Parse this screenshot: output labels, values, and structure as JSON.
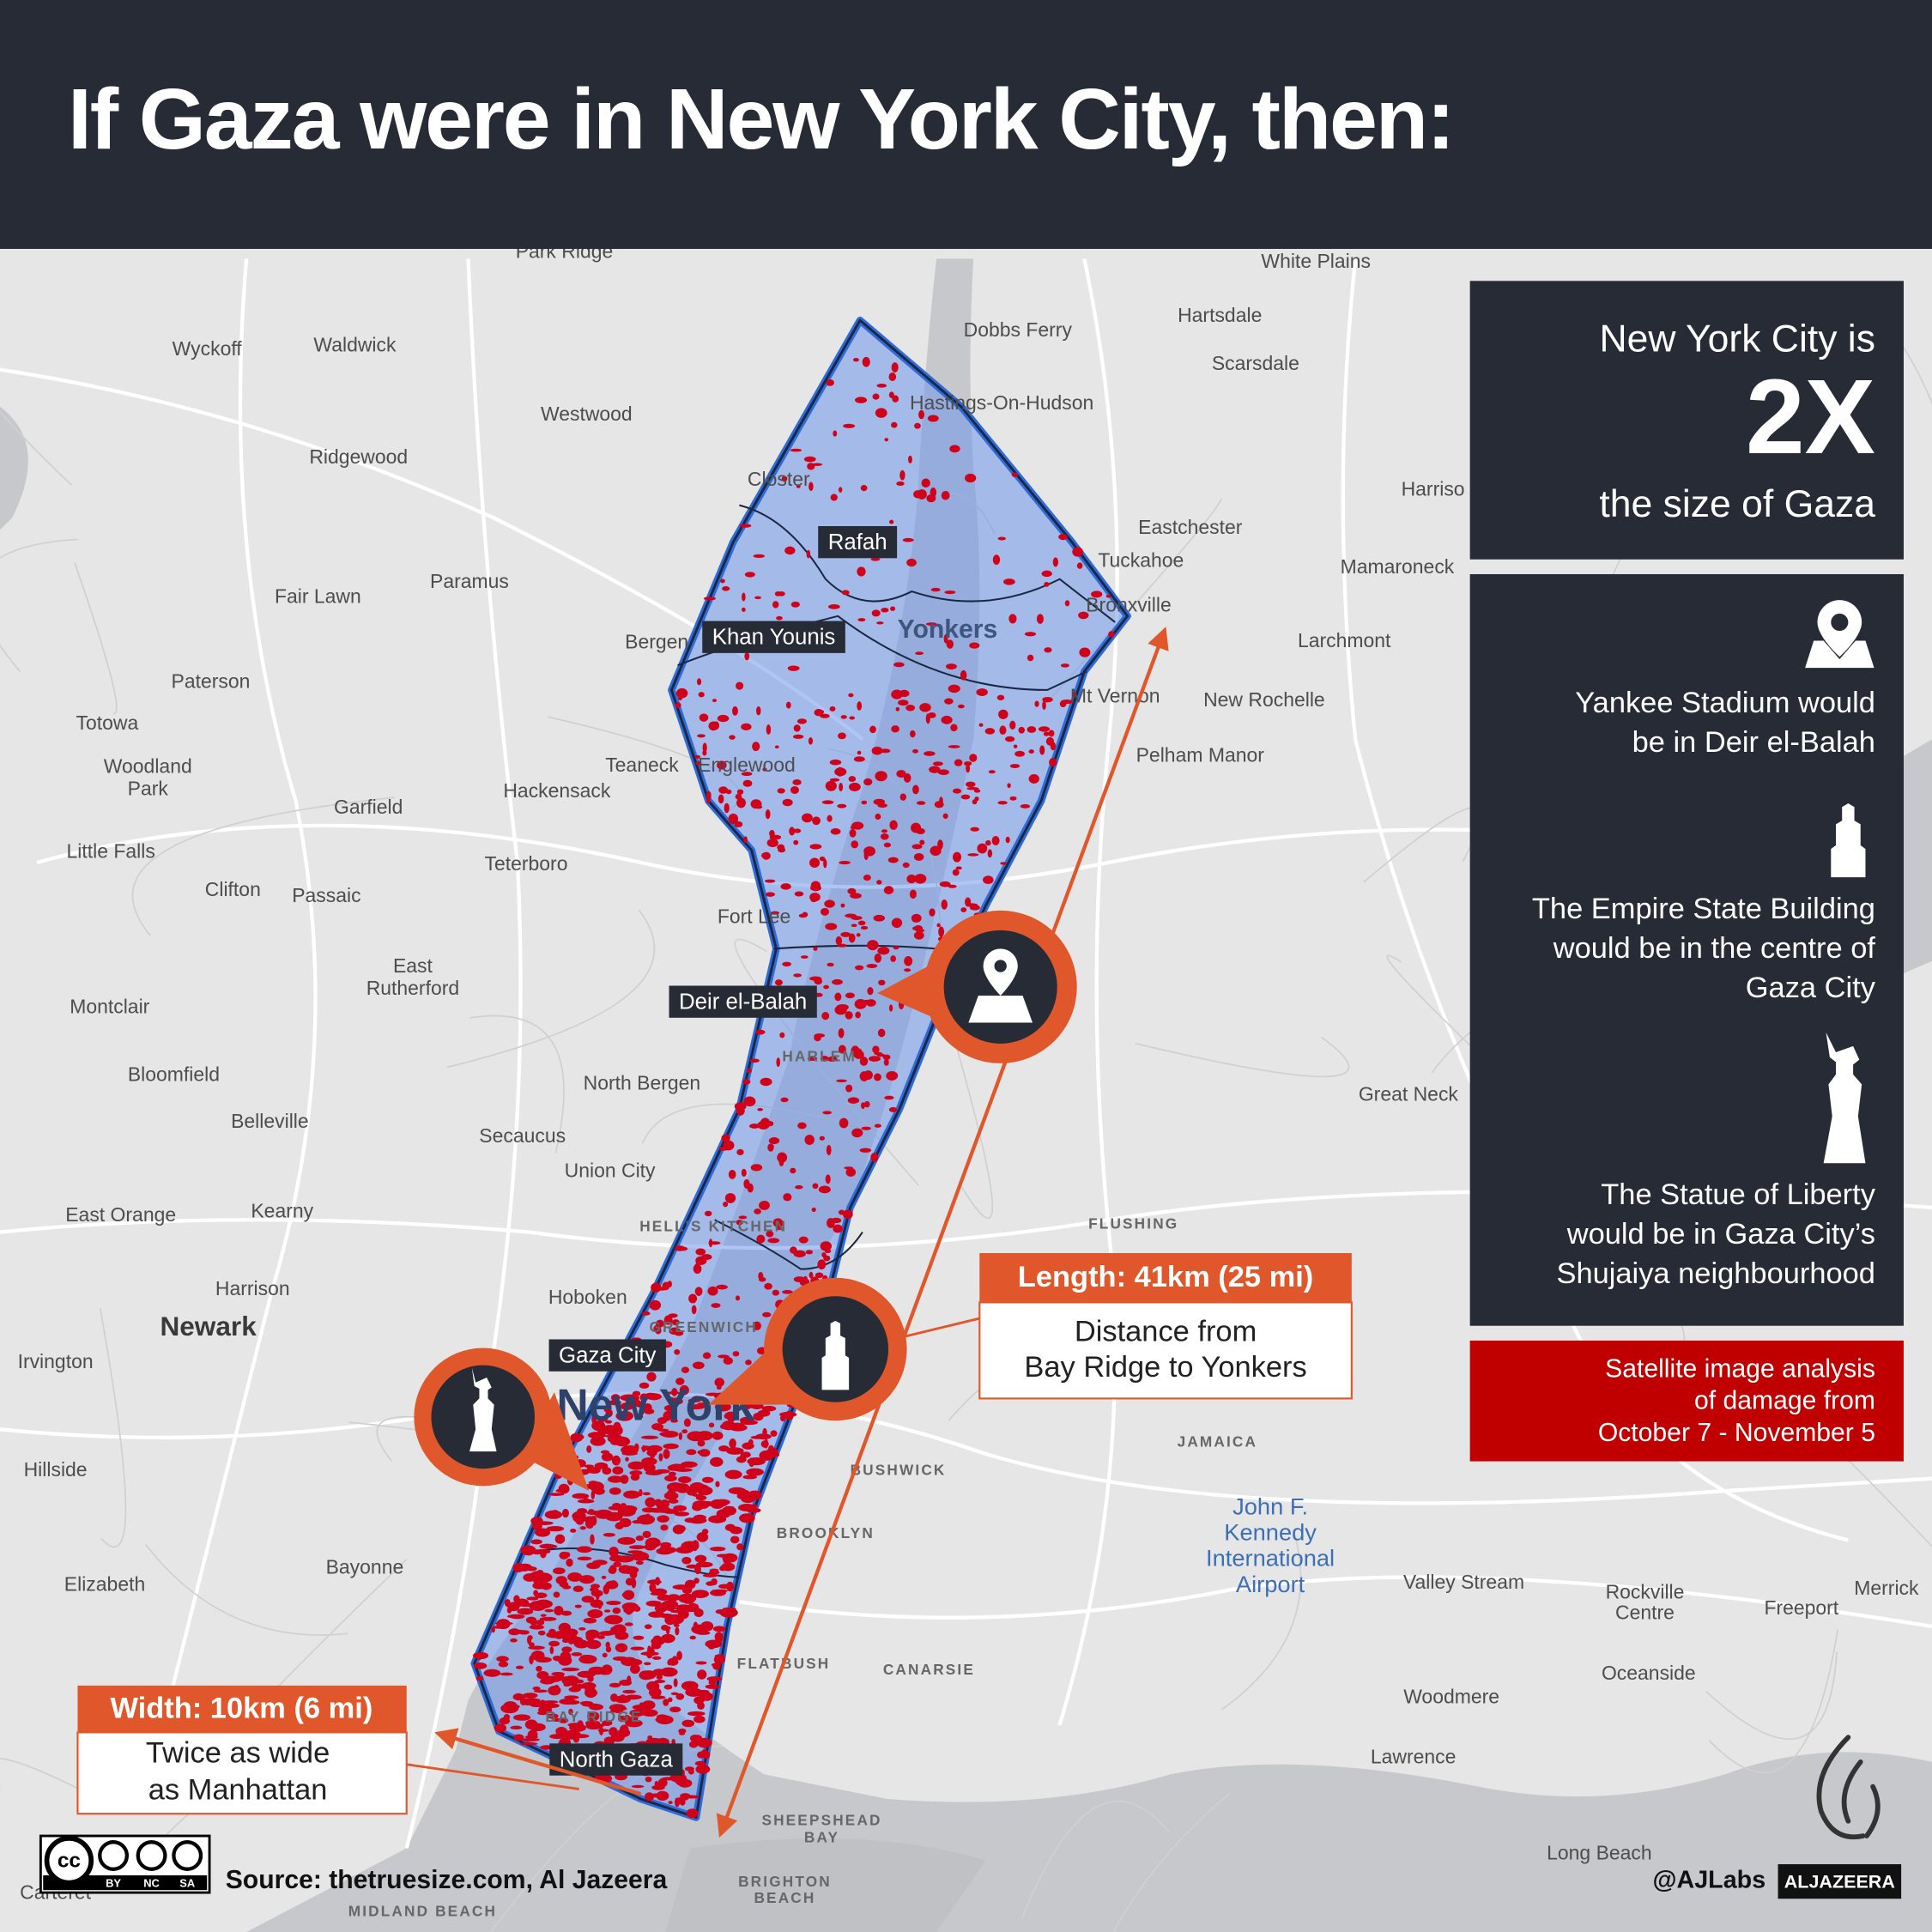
{
  "header": {
    "title": "If Gaza were in New York City, then:"
  },
  "size_panel": {
    "line1": "New York City is",
    "big": "2X",
    "line2": "the size of Gaza"
  },
  "facts": [
    {
      "lines": [
        "Yankee Stadium would",
        "be in Deir el-Balah"
      ]
    },
    {
      "lines": [
        "The Empire State Building",
        "would be in the centre of",
        "Gaza City"
      ]
    },
    {
      "lines": [
        "The Statue of Liberty",
        "would be in Gaza City’s",
        "Shujaiya neighbourhood"
      ]
    }
  ],
  "damage_note": {
    "lines": [
      "Satellite image analysis",
      "of damage from",
      "October 7 - November 5"
    ]
  },
  "gaza_areas": [
    "Rafah",
    "Khan Younis",
    "Deir el-Balah",
    "Gaza City",
    "North Gaza"
  ],
  "length": {
    "label": "Length: 41km (25 mi)",
    "lines": [
      "Distance from",
      "Bay Ridge to Yonkers"
    ]
  },
  "width": {
    "label": "Width: 10km (6 mi)",
    "lines": [
      "Twice as wide",
      "as Manhattan"
    ]
  },
  "map_labels": [
    "Park Ridge",
    "Wyckoff",
    "Waldwick",
    "Westwood",
    "Ridgewood",
    "Paramus",
    "Fair Lawn",
    "Paterson",
    "Totowa",
    "Woodland",
    "Park",
    "Little Falls",
    "Clifton",
    "Passaic",
    "Garfield",
    "Hackensack",
    "Teterboro",
    "Teaneck",
    "Englewood",
    "Bergen",
    "Closter",
    "Hastings-On-Hudson",
    "Dobbs Ferry",
    "White Plains",
    "Hartsdale",
    "Scarsdale",
    "Eastchester",
    "Tuckahoe",
    "Bronxville",
    "Mamaroneck",
    "Larchmont",
    "New Rochelle",
    "Mt Vernon",
    "Pelham Manor",
    "Yonkers",
    "Fort Lee",
    "East",
    "Rutherford",
    "Montclair",
    "Bloomfield",
    "Belleville",
    "North Bergen",
    "Secaucus",
    "Union City",
    "East Orange",
    "Kearny",
    "Harrison",
    "Hoboken",
    "Newark",
    "Irvington",
    "Hillside",
    "Elizabeth",
    "Bayonne",
    "New York",
    "BROOKLYN",
    "BUSHWICK",
    "JAMAICA",
    "John F.",
    "Kennedy",
    "International",
    "Airport",
    "Valley Stream",
    "Rockville",
    "Centre",
    "Freeport",
    "Merrick",
    "Oceanside",
    "Woodmere",
    "Lawrence",
    "Long Beach",
    "FLATBUSH",
    "CANARSIE",
    "BAY RIDGE",
    "SHEEPSHEAD",
    "BAY",
    "BRIGHTON",
    "BEACH",
    "MIDLAND BEACH",
    "Great Neck",
    "FLUSHING",
    "HARLEM",
    "HELL'S KITCHEN",
    "GREENWICH",
    "Harriso",
    "Carteret"
  ],
  "footer": {
    "cc": "cc",
    "license": [
      "BY",
      "NC",
      "SA"
    ],
    "source": "Source: thetruesize.com, Al Jazeera",
    "handle": "@AJLabs",
    "brand": "ALJAZEERA"
  }
}
